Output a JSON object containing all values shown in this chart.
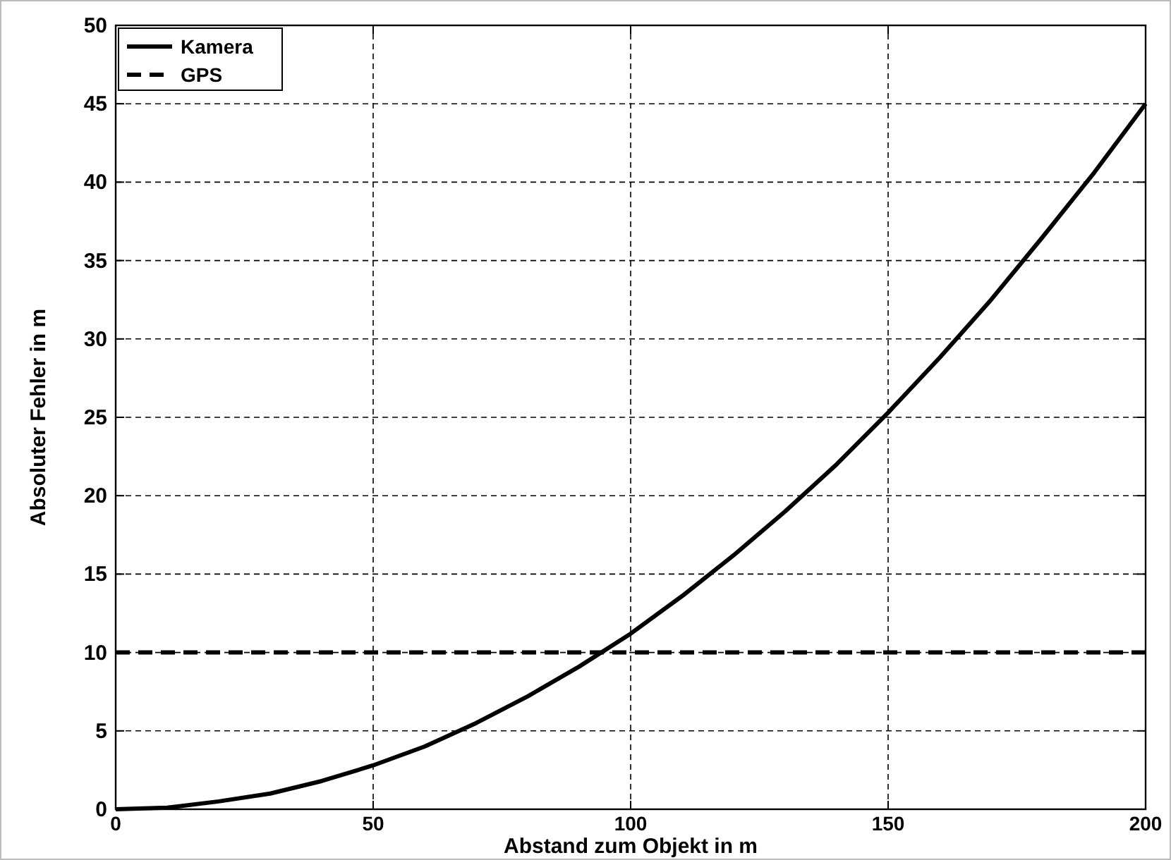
{
  "chart_data": {
    "type": "line",
    "xlabel": "Abstand zum Objekt in m",
    "ylabel": "Absoluter Fehler in m",
    "xlim": [
      0,
      200
    ],
    "ylim": [
      0,
      50
    ],
    "xticks": [
      0,
      50,
      100,
      150,
      200
    ],
    "yticks": [
      0,
      5,
      10,
      15,
      20,
      25,
      30,
      35,
      40,
      45,
      50
    ],
    "grid": true,
    "legend": "top left",
    "marker": "none",
    "series": [
      {
        "name": "Kamera",
        "color": "#000000",
        "line_style": "solid",
        "x": [
          0,
          10,
          20,
          30,
          40,
          50,
          60,
          70,
          80,
          90,
          100,
          110,
          120,
          130,
          140,
          150,
          160,
          170,
          180,
          190,
          200
        ],
        "values": [
          0,
          0.1,
          0.5,
          1.0,
          1.8,
          2.8,
          4.0,
          5.5,
          7.2,
          9.1,
          11.2,
          13.6,
          16.2,
          19.0,
          22.0,
          25.3,
          28.8,
          32.5,
          36.5,
          40.6,
          45
        ]
      },
      {
        "name": "GPS",
        "color": "#000000",
        "line_style": "dashed",
        "x": [
          0,
          20,
          40,
          60,
          80,
          100,
          120,
          140,
          160,
          180,
          200
        ],
        "values": [
          10,
          10,
          10,
          10,
          10,
          10,
          10,
          10,
          10,
          10,
          10
        ]
      }
    ]
  }
}
